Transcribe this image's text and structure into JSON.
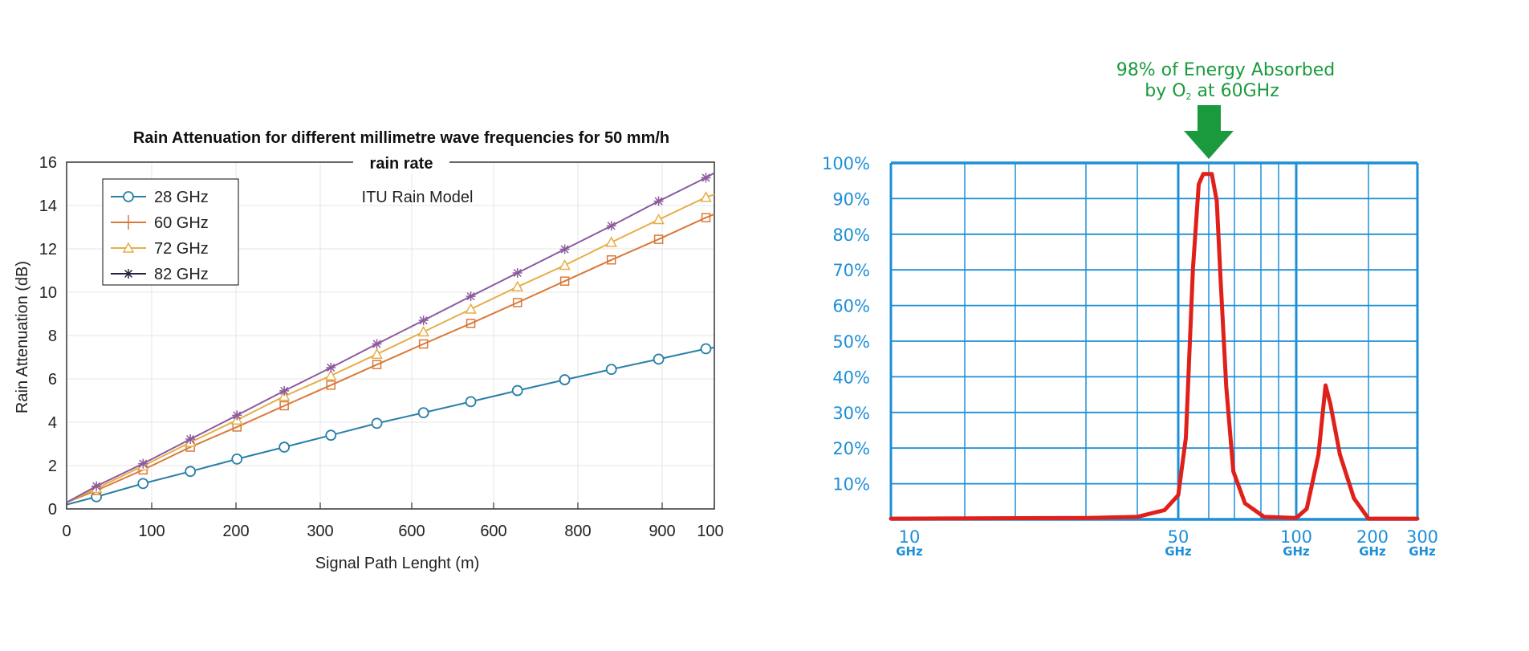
{
  "chart_data": [
    {
      "type": "line",
      "title": "Rain Attenuation for different millimetre wave frequencies for 50 mm/h rain rate",
      "title_lines": [
        "Rain Attenuation for different millimetre wave frequencies for 50 mm/h",
        "rain rate"
      ],
      "annotation": "ITU Rain Model",
      "xlabel": "Signal Path Lenght (m)",
      "ylabel": "Rain Attenuation (dB)",
      "xlim": [
        0,
        1000
      ],
      "ylim": [
        0,
        16
      ],
      "x_tick_labels": [
        "0",
        "100",
        "200",
        "300",
        "600",
        "600",
        "800",
        "900",
        "100"
      ],
      "y_ticks": [
        0,
        2,
        4,
        6,
        8,
        10,
        12,
        14,
        16
      ],
      "grid": true,
      "legend_position": "top-left",
      "x": [
        0,
        46,
        118,
        191,
        263,
        336,
        408,
        479,
        551,
        624,
        696,
        769,
        841,
        914,
        987,
        1000
      ],
      "series": [
        {
          "name": "28 GHz",
          "color": "#2a7fa8",
          "marker": "circle",
          "values": [
            0.2,
            0.56,
            1.17,
            1.73,
            2.3,
            2.85,
            3.4,
            3.95,
            4.44,
            4.95,
            5.46,
            5.96,
            6.44,
            6.91,
            7.39,
            7.45
          ]
        },
        {
          "name": "60 GHz",
          "color": "#d9793a",
          "marker": "square",
          "legend_marker": "plus",
          "values": [
            0.3,
            0.85,
            1.8,
            2.85,
            3.78,
            4.76,
            5.71,
            6.66,
            7.61,
            8.56,
            9.52,
            10.51,
            11.49,
            12.44,
            13.44,
            13.6
          ]
        },
        {
          "name": "72 GHz",
          "color": "#e6ae48",
          "marker": "triangle",
          "values": [
            0.3,
            0.95,
            1.98,
            3.07,
            4.1,
            5.2,
            6.15,
            7.14,
            8.17,
            9.22,
            10.25,
            11.24,
            12.3,
            13.35,
            14.38,
            14.5
          ]
        },
        {
          "name": "82 GHz",
          "color": "#8c5a9e",
          "marker": "star",
          "legend_color": "#2a2040",
          "values": [
            0.3,
            1.05,
            2.09,
            3.22,
            4.32,
            5.45,
            6.52,
            7.61,
            8.7,
            9.81,
            10.89,
            11.98,
            13.06,
            14.2,
            15.28,
            15.5
          ]
        }
      ]
    },
    {
      "type": "line",
      "annotation_lines": [
        "98% of Energy Absorbed",
        "by O",
        "2",
        " at 60GHz"
      ],
      "arrow_color": "#1a9a3c",
      "grid_color": "#1e8fd6",
      "curve_color": "#e0201a",
      "y_tick_labels": [
        "100%",
        "90%",
        "80%",
        "70%",
        "60%",
        "50%",
        "40%",
        "30%",
        "20%",
        "10%"
      ],
      "x_tick_labels": [
        {
          "value": "10",
          "unit": "GHz"
        },
        {
          "value": "50",
          "unit": "GHz"
        },
        {
          "value": "100",
          "unit": "GHz"
        },
        {
          "value": "200",
          "unit": "GHz"
        },
        {
          "value": "300",
          "unit": "GHz"
        }
      ],
      "xlim_ghz": [
        10,
        300
      ],
      "ylim_percent": [
        0,
        100
      ],
      "grid": true,
      "points": [
        [
          10,
          0.2
        ],
        [
          30.3,
          0.4
        ],
        [
          39.7,
          0.7
        ],
        [
          46.3,
          2.6
        ],
        [
          50,
          6.8
        ],
        [
          52.3,
          22.9
        ],
        [
          54.5,
          70.3
        ],
        [
          56.4,
          94
        ],
        [
          57.9,
          96.9
        ],
        [
          60.9,
          96.9
        ],
        [
          62.7,
          89.3
        ],
        [
          64.1,
          67.5
        ],
        [
          66.3,
          37.2
        ],
        [
          69.1,
          13.5
        ],
        [
          74,
          4.5
        ],
        [
          82.8,
          0.7
        ],
        [
          100,
          0.4
        ],
        [
          110.6,
          3.0
        ],
        [
          123.8,
          18.2
        ],
        [
          132.5,
          37.6
        ],
        [
          138.7,
          32.4
        ],
        [
          152,
          18.2
        ],
        [
          174,
          5.9
        ],
        [
          200,
          0.2
        ],
        [
          300,
          0.2
        ]
      ]
    }
  ]
}
